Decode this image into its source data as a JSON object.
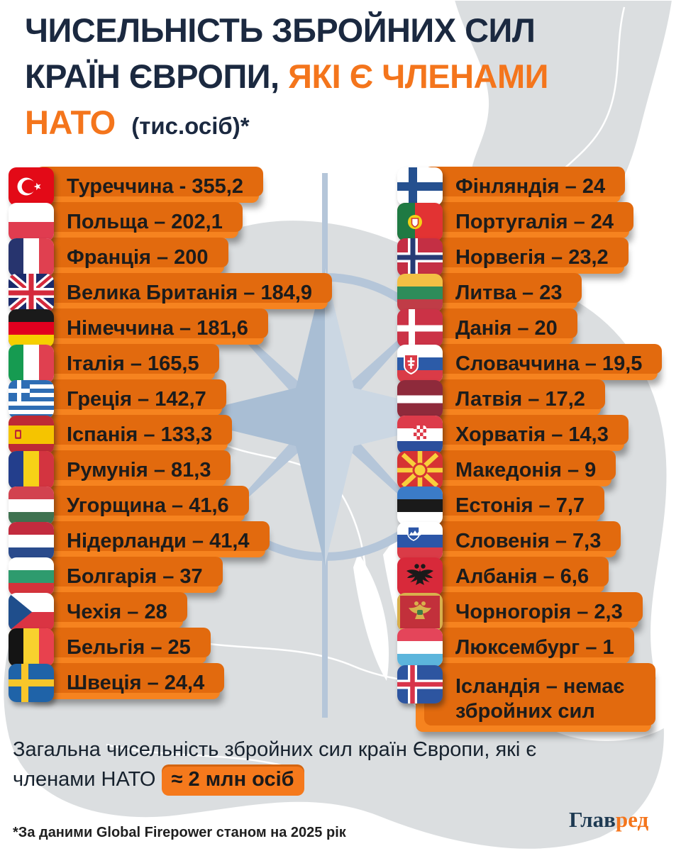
{
  "title": {
    "line1": "ЧИСЕЛЬНІСТЬ ЗБРОЙНИХ СИЛ",
    "line2_dark": "КРАЇН ЄВРОПИ,",
    "line2_orange": "ЯКІ Є ЧЛЕНАМИ",
    "line3_orange": "НАТО",
    "line3_suffix": "(тис.осіб)*"
  },
  "columns": {
    "left": [
      {
        "label": "Туреччина - 355,2",
        "flag": "turkey"
      },
      {
        "label": "Польща – 202,1",
        "flag": "poland"
      },
      {
        "label": "Франція – 200",
        "flag": "france"
      },
      {
        "label": "Велика Британія – 184,9",
        "flag": "uk"
      },
      {
        "label": "Німеччина – 181,6",
        "flag": "germany"
      },
      {
        "label": "Італія – 165,5",
        "flag": "italy"
      },
      {
        "label": "Греція – 142,7",
        "flag": "greece"
      },
      {
        "label": "Іспанія – 133,3",
        "flag": "spain"
      },
      {
        "label": "Румунія – 81,3",
        "flag": "romania"
      },
      {
        "label": "Угорщина – 41,6",
        "flag": "hungary"
      },
      {
        "label": "Нідерланди – 41,4",
        "flag": "netherlands"
      },
      {
        "label": "Болгарія – 37",
        "flag": "bulgaria"
      },
      {
        "label": "Чехія – 28",
        "flag": "czechia"
      },
      {
        "label": "Бельгія – 25",
        "flag": "belgium"
      },
      {
        "label": "Швеція – 24,4",
        "flag": "sweden"
      }
    ],
    "right": [
      {
        "label": "Фінляндія – 24",
        "flag": "finland"
      },
      {
        "label": "Португалія – 24",
        "flag": "portugal"
      },
      {
        "label": "Норвегія – 23,2",
        "flag": "norway"
      },
      {
        "label": "Литва – 23",
        "flag": "lithuania"
      },
      {
        "label": "Данія – 20",
        "flag": "denmark"
      },
      {
        "label": "Словаччина – 19,5",
        "flag": "slovakia"
      },
      {
        "label": "Латвія – 17,2",
        "flag": "latvia"
      },
      {
        "label": "Хорватія – 14,3",
        "flag": "croatia"
      },
      {
        "label": "Македонія – 9",
        "flag": "macedonia"
      },
      {
        "label": "Естонія – 7,7",
        "flag": "estonia"
      },
      {
        "label": "Словенія – 7,3",
        "flag": "slovenia"
      },
      {
        "label": "Албанія – 6,6",
        "flag": "albania"
      },
      {
        "label": "Чорногорія – 2,3",
        "flag": "montenegro"
      },
      {
        "label": "Люксембург – 1",
        "flag": "luxembourg"
      },
      {
        "label": "Ісландія – немає збройних сил",
        "flag": "iceland",
        "tall": true
      }
    ]
  },
  "summary": {
    "text": "Загальна чисельність збройних сил країн Європи, які є членами НАТО",
    "highlight": "≈ 2 млн осіб"
  },
  "footnote": "*За даними Global Firepower станом на 2025 рік",
  "logo": {
    "part1": "Глав",
    "part2": "ред"
  },
  "colors": {
    "accent_orange": "#F5791C",
    "pill_shadow_orange": "#E26A0E",
    "title_navy": "#1B2940",
    "nato_blue": "#B5C6D9",
    "map_gray": "#DBDEE0"
  },
  "chart_data": {
    "type": "table",
    "title": "Чисельність збройних сил країн Європи, які є членами НАТО",
    "unit": "тис. осіб",
    "rows": [
      {
        "country": "Туреччина",
        "value": 355.2
      },
      {
        "country": "Польща",
        "value": 202.1
      },
      {
        "country": "Франція",
        "value": 200
      },
      {
        "country": "Велика Британія",
        "value": 184.9
      },
      {
        "country": "Німеччина",
        "value": 181.6
      },
      {
        "country": "Італія",
        "value": 165.5
      },
      {
        "country": "Греція",
        "value": 142.7
      },
      {
        "country": "Іспанія",
        "value": 133.3
      },
      {
        "country": "Румунія",
        "value": 81.3
      },
      {
        "country": "Угорщина",
        "value": 41.6
      },
      {
        "country": "Нідерланди",
        "value": 41.4
      },
      {
        "country": "Болгарія",
        "value": 37
      },
      {
        "country": "Чехія",
        "value": 28
      },
      {
        "country": "Бельгія",
        "value": 25
      },
      {
        "country": "Швеція",
        "value": 24.4
      },
      {
        "country": "Фінляндія",
        "value": 24
      },
      {
        "country": "Португалія",
        "value": 24
      },
      {
        "country": "Норвегія",
        "value": 23.2
      },
      {
        "country": "Литва",
        "value": 23
      },
      {
        "country": "Данія",
        "value": 20
      },
      {
        "country": "Словаччина",
        "value": 19.5
      },
      {
        "country": "Латвія",
        "value": 17.2
      },
      {
        "country": "Хорватія",
        "value": 14.3
      },
      {
        "country": "Македонія",
        "value": 9
      },
      {
        "country": "Естонія",
        "value": 7.7
      },
      {
        "country": "Словенія",
        "value": 7.3
      },
      {
        "country": "Албанія",
        "value": 6.6
      },
      {
        "country": "Чорногорія",
        "value": 2.3
      },
      {
        "country": "Люксембург",
        "value": 1
      },
      {
        "country": "Ісландія",
        "value": null,
        "note": "немає збройних сил"
      }
    ],
    "total_note": "≈ 2 млн осіб",
    "source": "Global Firepower, 2025"
  }
}
